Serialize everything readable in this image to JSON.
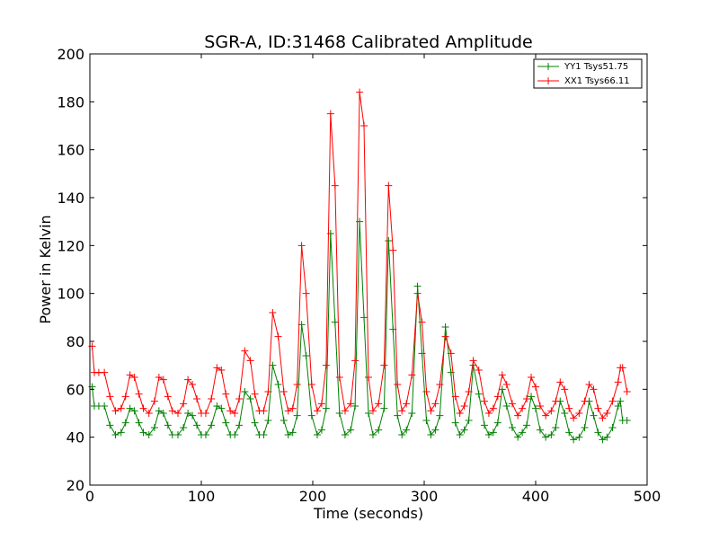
{
  "chart_data": {
    "type": "line",
    "title": "SGR-A, ID:31468 Calibrated Amplitude",
    "xlabel": "Time (seconds)",
    "ylabel": "Power in Kelvin",
    "xlim": [
      0,
      500
    ],
    "ylim": [
      20,
      200
    ],
    "xticks": [
      0,
      100,
      200,
      300,
      400,
      500
    ],
    "yticks": [
      20,
      40,
      60,
      80,
      100,
      120,
      140,
      160,
      180,
      200
    ],
    "grid": false,
    "legend_position": "top-right",
    "series": [
      {
        "name": "YY1 Tsys51.75",
        "color": "#008000",
        "marker": "+",
        "x": [
          2,
          4,
          8,
          13,
          18,
          23,
          28,
          32,
          36,
          40,
          44,
          48,
          53,
          58,
          62,
          66,
          70,
          74,
          79,
          84,
          88,
          92,
          96,
          100,
          104,
          109,
          114,
          118,
          122,
          126,
          130,
          134,
          139,
          144,
          148,
          152,
          156,
          160,
          164,
          169,
          174,
          178,
          182,
          186,
          190,
          194,
          199,
          204,
          208,
          212,
          216,
          220,
          224,
          229,
          234,
          238,
          242,
          246,
          250,
          254,
          259,
          264,
          268,
          272,
          276,
          280,
          284,
          289,
          294,
          298,
          302,
          306,
          310,
          314,
          319,
          324,
          328,
          332,
          336,
          340,
          344,
          349,
          354,
          358,
          362,
          366,
          370,
          374,
          379,
          384,
          388,
          392,
          396,
          400,
          404,
          409,
          414,
          418,
          422,
          426,
          430,
          434,
          439,
          444,
          448,
          452,
          456,
          460,
          464,
          469,
          474,
          476,
          478,
          482
        ],
        "y": [
          61,
          53,
          53,
          53,
          45,
          41,
          42,
          46,
          52,
          51,
          46,
          42,
          41,
          44,
          51,
          50,
          45,
          41,
          41,
          44,
          50,
          49,
          45,
          41,
          41,
          45,
          53,
          52,
          46,
          41,
          41,
          45,
          59,
          56,
          46,
          41,
          41,
          47,
          70,
          62,
          47,
          41,
          42,
          49,
          87,
          74,
          49,
          41,
          43,
          52,
          125,
          88,
          50,
          41,
          43,
          53,
          130,
          90,
          50,
          41,
          43,
          52,
          122,
          85,
          49,
          41,
          43,
          50,
          103,
          75,
          47,
          41,
          43,
          49,
          86,
          67,
          46,
          41,
          43,
          47,
          70,
          58,
          45,
          41,
          42,
          46,
          60,
          53,
          44,
          40,
          42,
          45,
          57,
          52,
          43,
          40,
          41,
          44,
          55,
          50,
          42,
          39,
          40,
          44,
          55,
          49,
          42,
          39,
          40,
          44,
          53,
          55,
          47,
          47
        ]
      },
      {
        "name": "XX1 Tsys66.11",
        "color": "#ff0000",
        "marker": "+",
        "x": [
          2,
          4,
          8,
          13,
          18,
          23,
          28,
          32,
          36,
          40,
          44,
          48,
          53,
          58,
          62,
          66,
          70,
          74,
          79,
          84,
          88,
          92,
          96,
          100,
          104,
          109,
          114,
          118,
          122,
          126,
          130,
          134,
          139,
          144,
          148,
          152,
          156,
          160,
          164,
          169,
          174,
          178,
          182,
          186,
          190,
          194,
          199,
          204,
          208,
          212,
          216,
          220,
          224,
          229,
          234,
          238,
          242,
          246,
          250,
          254,
          259,
          264,
          268,
          272,
          276,
          280,
          284,
          289,
          294,
          298,
          302,
          306,
          310,
          314,
          319,
          324,
          328,
          332,
          336,
          340,
          344,
          349,
          354,
          358,
          362,
          366,
          370,
          374,
          379,
          384,
          388,
          392,
          396,
          400,
          404,
          409,
          414,
          418,
          422,
          426,
          430,
          434,
          439,
          444,
          448,
          452,
          456,
          460,
          464,
          469,
          474,
          476,
          478,
          482
        ],
        "y": [
          78,
          67,
          67,
          67,
          57,
          51,
          52,
          57,
          66,
          65,
          58,
          52,
          50,
          55,
          65,
          64,
          57,
          51,
          50,
          54,
          64,
          62,
          56,
          50,
          50,
          56,
          69,
          68,
          58,
          51,
          50,
          56,
          76,
          72,
          58,
          51,
          51,
          59,
          92,
          82,
          59,
          51,
          52,
          62,
          120,
          100,
          62,
          51,
          54,
          70,
          175,
          145,
          65,
          51,
          54,
          72,
          184,
          170,
          65,
          51,
          54,
          70,
          145,
          118,
          62,
          51,
          54,
          66,
          100,
          88,
          59,
          51,
          54,
          62,
          82,
          75,
          57,
          50,
          53,
          59,
          72,
          68,
          55,
          50,
          52,
          57,
          66,
          62,
          54,
          49,
          52,
          56,
          65,
          61,
          53,
          49,
          51,
          55,
          63,
          60,
          52,
          48,
          50,
          55,
          62,
          60,
          52,
          48,
          50,
          55,
          63,
          69,
          69,
          59
        ]
      }
    ]
  }
}
